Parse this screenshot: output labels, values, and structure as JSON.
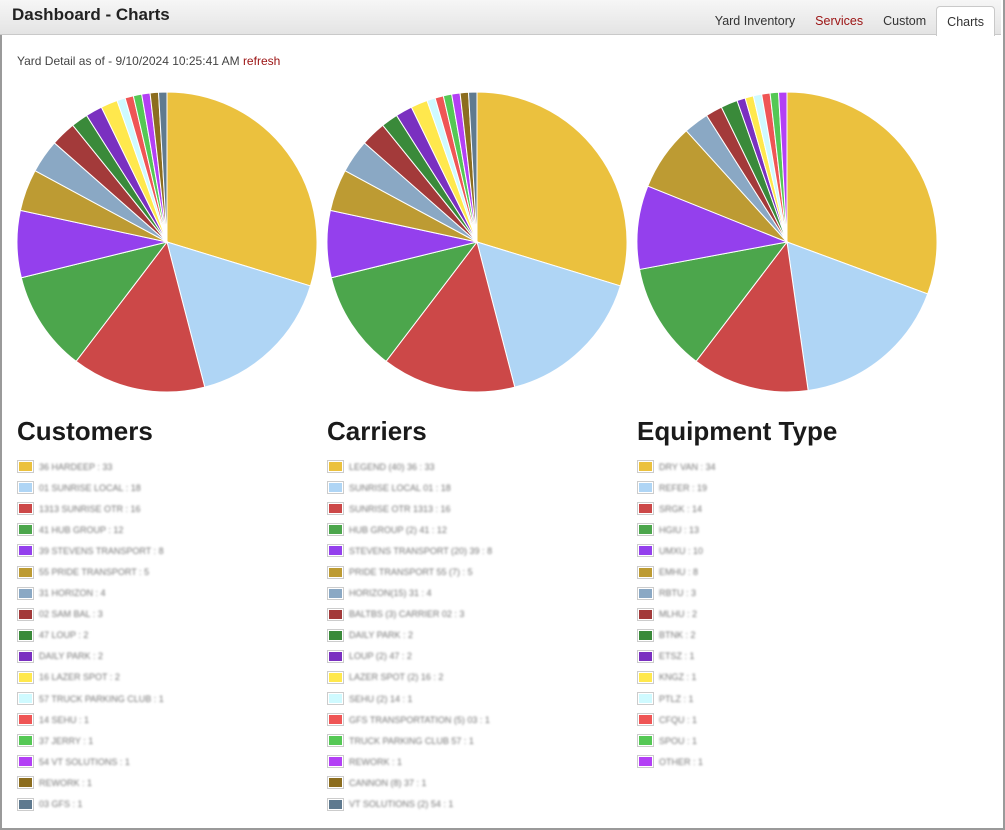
{
  "header": {
    "title": "Dashboard - Charts",
    "tabs": [
      {
        "label": "Yard Inventory",
        "style": "normal"
      },
      {
        "label": "Services",
        "style": "red"
      },
      {
        "label": "Custom",
        "style": "normal"
      },
      {
        "label": "Charts",
        "style": "active"
      }
    ]
  },
  "subheader": {
    "text": "Yard Detail as of - 9/10/2024 10:25:41 AM",
    "refresh": "refresh"
  },
  "colors": [
    "#ebc13e",
    "#afd5f5",
    "#cc4848",
    "#4ca64c",
    "#9440ed",
    "#bd9b33",
    "#8aa8c4",
    "#a33a3a",
    "#3a8a3a",
    "#7a30c0",
    "#ffe84d",
    "#cffaff",
    "#ef5555",
    "#55c855",
    "#b340f5",
    "#8c6d1f",
    "#5f7a8f"
  ],
  "chart_data": [
    {
      "type": "pie",
      "title": "Customers",
      "labels": [
        "36 HARDEEP",
        "01 SUNRISE LOCAL",
        "1313 SUNRISE OTR",
        "41 HUB GROUP",
        "39 STEVENS TRANSPORT",
        "55 PRIDE TRANSPORT",
        "31 HORIZON",
        "02 SAM BAL",
        "47 LOUP",
        "DAILY PARK",
        "16 LAZER SPOT",
        "57 TRUCK PARKING CLUB",
        "14 SEHU",
        "37 JERRY",
        "54 VT SOLUTIONS",
        "REWORK",
        "03 GFS"
      ],
      "values": [
        33,
        18,
        16,
        12,
        8,
        5,
        4,
        3,
        2,
        2,
        2,
        1,
        1,
        1,
        1,
        1,
        1
      ]
    },
    {
      "type": "pie",
      "title": "Carriers",
      "labels": [
        "LEGEND (40) 36",
        "SUNRISE LOCAL 01",
        "SUNRISE OTR 1313",
        "HUB GROUP (2) 41",
        "STEVENS TRANSPORT (20) 39",
        "PRIDE TRANSPORT 55 (7)",
        "HORIZON(15) 31",
        "BALTBS (3) CARRIER 02",
        "DAILY PARK",
        "LOUP (2) 47",
        "LAZER SPOT (2) 16",
        "SEHU (2) 14",
        "GFS TRANSPORTATION (5) 03",
        "TRUCK PARKING CLUB 57",
        "REWORK",
        "CANNON (8) 37",
        "VT SOLUTIONS (2) 54"
      ],
      "values": [
        33,
        18,
        16,
        12,
        8,
        5,
        4,
        3,
        2,
        2,
        2,
        1,
        1,
        1,
        1,
        1,
        1
      ]
    },
    {
      "type": "pie",
      "title": "Equipment Type",
      "labels": [
        "DRY VAN",
        "REFER",
        "SRGK",
        "HGIU",
        "UMXU",
        "EMHU",
        "RBTU",
        "MLHU",
        "BTNK",
        "ETSZ",
        "KNGZ",
        "PTLZ",
        "CFQU",
        "SPOU",
        "OTHER"
      ],
      "values": [
        34,
        19,
        14,
        13,
        10,
        8,
        3,
        2,
        2,
        1,
        1,
        1,
        1,
        1,
        1
      ]
    }
  ]
}
